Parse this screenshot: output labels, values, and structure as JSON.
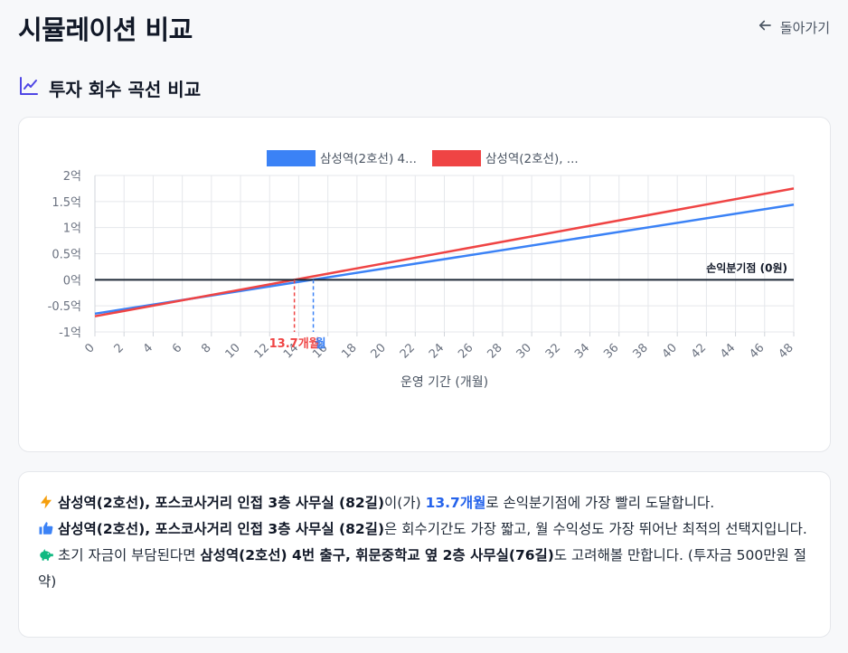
{
  "header": {
    "title": "시뮬레이션 비교",
    "back_label": "돌아가기"
  },
  "section": {
    "title": "투자 회수 곡선 비교"
  },
  "colors": {
    "blue": "#3b82f6",
    "red": "#ef4444",
    "zero_line": "#1f2937",
    "accent": "#2563eb"
  },
  "chart_data": {
    "type": "line",
    "xlabel": "운영 기간 (개월)",
    "ylabel": "",
    "xlim": [
      0,
      48
    ],
    "ylim": [
      -1,
      2
    ],
    "x_ticks": [
      "0",
      "2",
      "4",
      "6",
      "8",
      "10",
      "12",
      "14",
      "16",
      "18",
      "20",
      "22",
      "24",
      "26",
      "28",
      "30",
      "32",
      "34",
      "36",
      "38",
      "40",
      "42",
      "44",
      "46",
      "48"
    ],
    "y_ticks": [
      "2억",
      "1.5억",
      "1억",
      "0.5억",
      "0억",
      "-0.5억",
      "-1억"
    ],
    "y_tick_values": [
      2,
      1.5,
      1,
      0.5,
      0,
      -0.5,
      -1
    ],
    "grid": true,
    "legend_position": "top",
    "series": [
      {
        "name": "삼성역(2호선) 4...",
        "color": "#3b82f6",
        "x": [
          0,
          48
        ],
        "y": [
          -0.65,
          1.44
        ],
        "breakeven_month": 15
      },
      {
        "name": "삼성역(2호선), ...",
        "color": "#ef4444",
        "x": [
          0,
          48
        ],
        "y": [
          -0.7,
          1.75
        ],
        "breakeven_month": 13.7
      }
    ],
    "annotations": {
      "zero_line_label": "손익분기점 (0원)",
      "breakeven_red_label": "13.7개월",
      "breakeven_blue_label": "월"
    }
  },
  "insights": {
    "line1": {
      "icon": "lightning-icon",
      "bold": "삼성역(2호선), 포스코사거리 인접 3층 사무실 (82길)",
      "text_a": "이(가) ",
      "highlight": "13.7개월",
      "text_b": "로 손익분기점에 가장 빨리 도달합니다."
    },
    "line2": {
      "icon": "thumbs-up-icon",
      "bold": "삼성역(2호선), 포스코사거리 인접 3층 사무실 (82길)",
      "text": "은 회수기간도 가장 짧고, 월 수익성도 가장 뛰어난 최적의 선택지입니다."
    },
    "line3": {
      "icon": "piggy-bank-icon",
      "text_a": "초기 자금이 부담된다면 ",
      "bold": "삼성역(2호선) 4번 출구, 휘문중학교 옆 2층 사무실(76길)",
      "text_b": "도 고려해볼 만합니다. (투자금 500만원 절약)"
    }
  }
}
